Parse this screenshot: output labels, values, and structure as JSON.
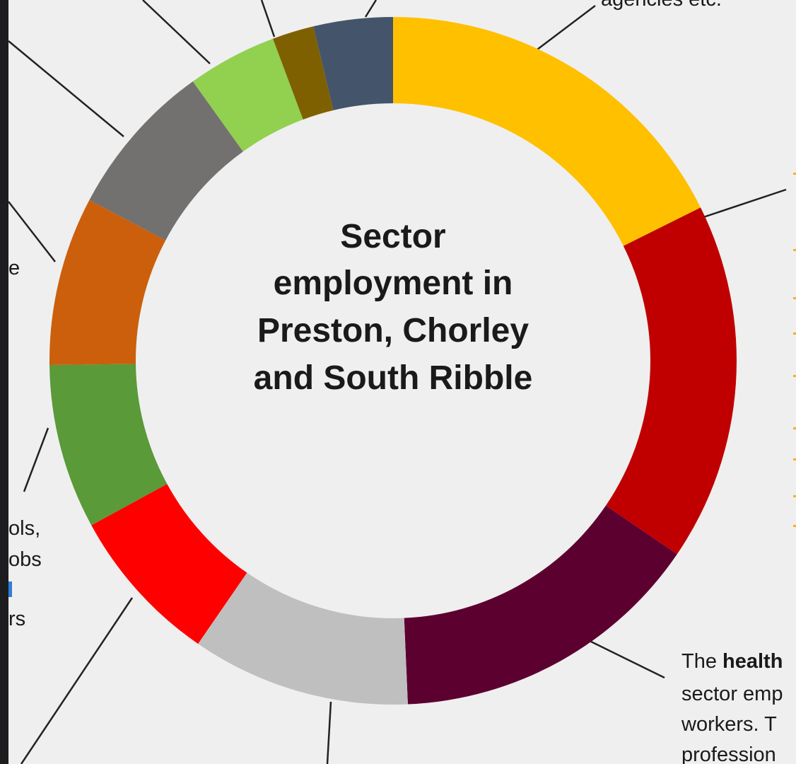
{
  "chart_data": {
    "type": "pie",
    "variant": "donut",
    "title_lines": [
      "Sector",
      "employment in",
      "Preston, Chorley",
      "and South Ribble"
    ],
    "categories": [
      "",
      "",
      "",
      "",
      "",
      "",
      "",
      "",
      "",
      "",
      ""
    ],
    "values": [
      18.0,
      17.2,
      15.1,
      10.5,
      7.6,
      7.9,
      8.1,
      7.5,
      4.3,
      2.0,
      3.8
    ],
    "colors": [
      "#ffc000",
      "#c00000",
      "#5c0030",
      "#bfbfbf",
      "#ff0000",
      "#5a9a38",
      "#cc5f0c",
      "#737070",
      "#92d050",
      "#7f6000",
      "#44546a"
    ],
    "start_angle_deg": 0,
    "direction": "clockwise",
    "legend": "none"
  },
  "annotations": {
    "top_right": "agencies etc.",
    "left_fragment_1": "e",
    "left_fragment_2": "ols,",
    "left_fragment_3": "obs",
    "left_fragment_4": "rs",
    "health_line1_a": "The ",
    "health_line1_b": "health",
    "health_line2": "sector emp",
    "health_line3": "workers.  T",
    "health_line4": "profession"
  }
}
